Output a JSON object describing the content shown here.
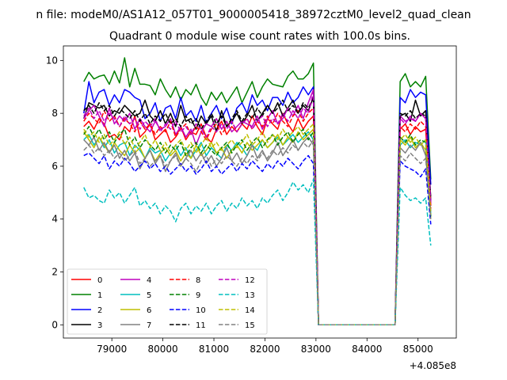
{
  "chart_data": {
    "type": "line",
    "suptitle": "n file: modeM0/AS1A12_057T01_9000005418_38972cztM0_level2_quad_clean",
    "title": "Quadrant 0 module wise count rates with 100.0s bins.",
    "xlabel": "",
    "ylabel": "",
    "x_offset_label": "+4.085e8",
    "xlim": [
      78050,
      85750
    ],
    "ylim": [
      -0.5,
      10.55
    ],
    "x_ticks": [
      79000,
      80000,
      81000,
      82000,
      83000,
      84000,
      85000
    ],
    "x_tick_labels": [
      "79000",
      "80000",
      "81000",
      "82000",
      "83000",
      "84000",
      "85000"
    ],
    "y_ticks": [
      0,
      2,
      4,
      6,
      8,
      10
    ],
    "y_tick_labels": [
      "0",
      "2",
      "4",
      "6",
      "8",
      "10"
    ],
    "legend_location": "lower-left",
    "x_start": 78450,
    "bin_width": 100,
    "gap_start_index": 46,
    "gap_end_index": 61,
    "series": [
      {
        "name": "0",
        "color": "#ff0000",
        "dash": "solid",
        "values": [
          7.5,
          7.7,
          7.4,
          7.8,
          7.6,
          7.1,
          7.2,
          7.0,
          7.5,
          7.3,
          7.9,
          7.1,
          7.3,
          7.6,
          7.0,
          7.2,
          7.4,
          6.9,
          7.1,
          7.5,
          7.0,
          7.3,
          7.2,
          7.6,
          7.1,
          6.9,
          7.4,
          7.7,
          7.2,
          7.5,
          7.3,
          7.6,
          7.4,
          7.9,
          7.5,
          7.2,
          7.8,
          7.6,
          7.4,
          8.0,
          7.6,
          7.3,
          7.8,
          7.4,
          7.7,
          7.9,
          0,
          0,
          0,
          0,
          0,
          0,
          0,
          0,
          0,
          0,
          0,
          0,
          0,
          0,
          0,
          0,
          7.4,
          7.6,
          7.2,
          7.5,
          7.3,
          7.4,
          4.5
        ]
      },
      {
        "name": "1",
        "color": "#008000",
        "dash": "solid",
        "values": [
          9.2,
          9.55,
          9.3,
          9.4,
          9.45,
          9.1,
          9.6,
          9.15,
          10.1,
          9.0,
          9.7,
          9.1,
          9.1,
          9.05,
          8.7,
          9.3,
          8.9,
          8.6,
          9.0,
          8.5,
          8.9,
          8.7,
          9.1,
          8.6,
          8.3,
          8.8,
          8.5,
          8.8,
          8.4,
          8.7,
          9.0,
          8.4,
          8.8,
          9.2,
          8.6,
          9.0,
          9.3,
          9.1,
          9.05,
          9.0,
          9.4,
          9.6,
          9.3,
          9.3,
          9.5,
          9.9,
          0,
          0,
          0,
          0,
          0,
          0,
          0,
          0,
          0,
          0,
          0,
          0,
          0,
          0,
          0,
          0,
          9.2,
          9.5,
          9.0,
          9.2,
          9.0,
          9.4,
          5.5
        ]
      },
      {
        "name": "2",
        "color": "#0000ff",
        "dash": "solid",
        "values": [
          8.0,
          9.2,
          8.4,
          8.8,
          8.9,
          8.3,
          8.7,
          8.4,
          8.9,
          8.8,
          8.6,
          8.5,
          7.8,
          8.0,
          8.4,
          7.7,
          8.2,
          8.3,
          7.8,
          8.6,
          7.9,
          8.1,
          7.7,
          8.3,
          7.6,
          8.0,
          8.3,
          7.8,
          8.2,
          7.6,
          8.2,
          8.4,
          8.0,
          8.7,
          8.3,
          8.5,
          8.1,
          8.6,
          8.6,
          8.3,
          8.8,
          8.4,
          8.6,
          9.0,
          8.7,
          9.0,
          0,
          0,
          0,
          0,
          0,
          0,
          0,
          0,
          0,
          0,
          0,
          0,
          0,
          0,
          0,
          0,
          8.6,
          8.4,
          8.9,
          8.6,
          8.8,
          8.7,
          5.3
        ]
      },
      {
        "name": "3",
        "color": "#000000",
        "dash": "solid",
        "values": [
          7.8,
          8.4,
          8.3,
          8.2,
          8.3,
          7.9,
          8.1,
          8.0,
          8.3,
          8.1,
          7.9,
          8.0,
          8.5,
          7.9,
          7.7,
          8.1,
          7.6,
          8.0,
          7.5,
          8.3,
          7.7,
          7.8,
          7.4,
          7.9,
          7.6,
          7.9,
          7.3,
          8.1,
          7.5,
          7.7,
          8.0,
          7.6,
          7.9,
          8.3,
          7.7,
          8.0,
          8.3,
          8.0,
          8.4,
          7.9,
          8.2,
          8.5,
          8.0,
          8.3,
          8.1,
          8.6,
          0,
          0,
          0,
          0,
          0,
          0,
          0,
          0,
          0,
          0,
          0,
          0,
          0,
          0,
          0,
          0,
          7.9,
          8.0,
          7.7,
          8.5,
          7.9,
          8.1,
          4.7
        ]
      },
      {
        "name": "4",
        "color": "#bf00bf",
        "dash": "solid",
        "values": [
          7.8,
          8.1,
          8.3,
          7.9,
          7.5,
          8.2,
          7.6,
          7.9,
          7.7,
          8.0,
          7.4,
          7.8,
          7.5,
          7.3,
          7.7,
          7.4,
          7.5,
          7.8,
          7.2,
          7.5,
          7.1,
          7.4,
          6.8,
          7.3,
          7.6,
          7.5,
          7.8,
          7.4,
          7.7,
          7.3,
          7.5,
          7.7,
          7.6,
          7.5,
          7.9,
          7.4,
          7.8,
          8.1,
          7.6,
          7.8,
          8.2,
          7.9,
          8.3,
          7.8,
          8.4,
          8.9,
          0,
          0,
          0,
          0,
          0,
          0,
          0,
          0,
          0,
          0,
          0,
          0,
          0,
          0,
          0,
          0,
          7.9,
          7.7,
          7.8,
          7.7,
          8.0,
          7.8,
          4.6
        ]
      },
      {
        "name": "5",
        "color": "#00bfbf",
        "dash": "solid",
        "values": [
          7.0,
          7.2,
          6.8,
          7.1,
          6.7,
          7.0,
          6.5,
          6.8,
          6.9,
          6.4,
          6.8,
          6.6,
          6.3,
          6.7,
          6.5,
          6.6,
          6.2,
          6.5,
          6.8,
          6.4,
          6.7,
          6.3,
          6.6,
          6.9,
          6.4,
          6.7,
          6.5,
          6.3,
          6.8,
          6.6,
          6.9,
          6.7,
          6.4,
          6.8,
          6.6,
          7.0,
          6.7,
          6.9,
          7.1,
          6.8,
          7.0,
          7.2,
          6.9,
          7.1,
          7.3,
          7.0,
          0,
          0,
          0,
          0,
          0,
          0,
          0,
          0,
          0,
          0,
          0,
          0,
          0,
          0,
          0,
          0,
          6.8,
          7.0,
          6.7,
          6.9,
          6.8,
          7.0,
          4.2
        ]
      },
      {
        "name": "6",
        "color": "#bfbf00",
        "dash": "solid",
        "values": [
          7.3,
          7.0,
          6.7,
          7.1,
          6.8,
          6.5,
          6.9,
          6.6,
          6.4,
          6.8,
          6.5,
          6.7,
          6.3,
          6.6,
          6.2,
          6.5,
          6.7,
          6.4,
          6.6,
          6.2,
          6.5,
          6.3,
          6.8,
          6.4,
          6.6,
          6.9,
          6.5,
          6.7,
          6.3,
          6.6,
          6.8,
          6.5,
          6.9,
          6.6,
          6.8,
          7.0,
          6.7,
          6.9,
          7.2,
          6.8,
          7.1,
          6.9,
          7.3,
          7.0,
          7.2,
          7.4,
          0,
          0,
          0,
          0,
          0,
          0,
          0,
          0,
          0,
          0,
          0,
          0,
          0,
          0,
          0,
          0,
          7.0,
          6.8,
          7.1,
          6.7,
          6.9,
          6.6,
          4.0
        ]
      },
      {
        "name": "7",
        "color": "#808080",
        "dash": "solid",
        "values": [
          7.0,
          6.8,
          7.1,
          6.6,
          6.9,
          6.5,
          6.8,
          6.3,
          6.6,
          6.2,
          6.5,
          5.9,
          6.3,
          6.6,
          6.1,
          6.4,
          5.8,
          6.2,
          6.5,
          6.0,
          6.3,
          6.6,
          6.2,
          6.5,
          6.1,
          6.4,
          6.0,
          6.3,
          6.7,
          6.2,
          6.5,
          6.1,
          6.4,
          6.8,
          6.3,
          6.6,
          6.2,
          6.5,
          6.9,
          6.4,
          6.7,
          7.0,
          6.6,
          6.9,
          7.1,
          6.8,
          0,
          0,
          0,
          0,
          0,
          0,
          0,
          0,
          0,
          0,
          0,
          0,
          0,
          0,
          0,
          0,
          6.7,
          6.5,
          6.8,
          6.6,
          6.9,
          6.4,
          4.3
        ]
      },
      {
        "name": "8",
        "color": "#ff0000",
        "dash": "dashed",
        "values": [
          7.7,
          8.0,
          7.8,
          7.6,
          8.1,
          7.7,
          7.9,
          7.5,
          7.8,
          7.6,
          7.3,
          7.7,
          7.4,
          7.6,
          7.2,
          7.5,
          7.3,
          7.7,
          7.1,
          7.4,
          7.6,
          7.2,
          7.5,
          7.3,
          7.0,
          7.4,
          7.6,
          7.2,
          7.5,
          7.7,
          7.3,
          7.6,
          7.8,
          7.4,
          7.7,
          7.5,
          7.9,
          7.6,
          8.0,
          7.7,
          7.5,
          7.9,
          8.1,
          7.7,
          8.0,
          8.2,
          0,
          0,
          0,
          0,
          0,
          0,
          0,
          0,
          0,
          0,
          0,
          0,
          0,
          0,
          0,
          0,
          7.5,
          7.3,
          7.6,
          7.4,
          7.7,
          7.5,
          4.4
        ]
      },
      {
        "name": "9",
        "color": "#008000",
        "dash": "dashed",
        "values": [
          7.2,
          7.5,
          7.1,
          7.4,
          7.0,
          7.3,
          6.9,
          7.2,
          7.4,
          6.8,
          7.1,
          6.7,
          7.0,
          6.8,
          6.6,
          6.9,
          6.5,
          6.8,
          6.6,
          6.9,
          6.4,
          6.7,
          6.9,
          6.5,
          6.8,
          6.6,
          6.4,
          6.7,
          6.9,
          6.5,
          6.8,
          7.0,
          6.6,
          6.9,
          7.1,
          6.7,
          7.0,
          7.2,
          6.8,
          7.1,
          7.3,
          6.9,
          7.2,
          7.4,
          7.0,
          7.3,
          0,
          0,
          0,
          0,
          0,
          0,
          0,
          0,
          0,
          0,
          0,
          0,
          0,
          0,
          0,
          0,
          7.1,
          6.9,
          7.2,
          6.8,
          7.0,
          6.9,
          4.1
        ]
      },
      {
        "name": "10",
        "color": "#0000ff",
        "dash": "dashed",
        "values": [
          6.4,
          6.5,
          6.3,
          6.1,
          6.4,
          5.9,
          6.2,
          6.0,
          6.3,
          6.1,
          5.8,
          6.0,
          6.2,
          5.9,
          6.1,
          5.8,
          6.0,
          5.7,
          5.9,
          6.1,
          5.8,
          6.0,
          5.7,
          5.9,
          6.2,
          5.8,
          6.0,
          5.7,
          5.9,
          6.1,
          5.8,
          6.1,
          5.9,
          6.2,
          6.0,
          5.8,
          6.1,
          5.9,
          6.2,
          6.0,
          6.3,
          6.1,
          5.9,
          6.2,
          6.4,
          6.1,
          0,
          0,
          0,
          0,
          0,
          0,
          0,
          0,
          0,
          0,
          0,
          0,
          0,
          0,
          0,
          0,
          6.2,
          6.0,
          5.9,
          5.8,
          5.6,
          5.9,
          3.8
        ]
      },
      {
        "name": "11",
        "color": "#000000",
        "dash": "dashed",
        "values": [
          8.1,
          8.3,
          8.0,
          8.4,
          8.1,
          8.3,
          7.9,
          8.2,
          8.0,
          7.8,
          8.1,
          7.7,
          8.0,
          7.6,
          7.9,
          7.7,
          8.0,
          7.6,
          7.8,
          7.5,
          7.9,
          7.6,
          7.8,
          7.4,
          7.7,
          8.0,
          7.6,
          7.9,
          7.5,
          7.8,
          8.1,
          7.7,
          8.0,
          7.8,
          8.2,
          7.9,
          8.3,
          8.0,
          8.2,
          8.5,
          8.1,
          8.3,
          8.0,
          8.4,
          8.2,
          8.6,
          0,
          0,
          0,
          0,
          0,
          0,
          0,
          0,
          0,
          0,
          0,
          0,
          0,
          0,
          0,
          0,
          8.0,
          7.9,
          8.1,
          7.8,
          8.0,
          7.9,
          4.8
        ]
      },
      {
        "name": "12",
        "color": "#bf00bf",
        "dash": "dashed",
        "values": [
          7.9,
          8.2,
          7.8,
          8.1,
          7.7,
          8.0,
          7.8,
          7.5,
          7.9,
          7.6,
          7.8,
          7.4,
          7.7,
          7.5,
          7.8,
          7.3,
          7.6,
          7.4,
          7.7,
          7.3,
          7.5,
          7.2,
          7.6,
          7.4,
          7.1,
          7.5,
          7.3,
          7.6,
          7.4,
          7.7,
          7.3,
          7.6,
          7.8,
          7.4,
          7.7,
          7.9,
          7.5,
          7.8,
          7.6,
          8.0,
          7.7,
          8.1,
          7.8,
          8.2,
          8.0,
          8.8,
          0,
          0,
          0,
          0,
          0,
          0,
          0,
          0,
          0,
          0,
          0,
          0,
          0,
          0,
          0,
          0,
          7.8,
          7.6,
          7.9,
          7.7,
          8.0,
          7.8,
          4.6
        ]
      },
      {
        "name": "13",
        "color": "#00bfbf",
        "dash": "dashed",
        "values": [
          5.2,
          4.8,
          4.9,
          4.7,
          4.6,
          5.1,
          4.8,
          5.0,
          4.6,
          4.9,
          5.2,
          4.5,
          4.7,
          4.4,
          4.6,
          4.2,
          4.5,
          4.3,
          3.9,
          4.4,
          4.6,
          4.2,
          4.5,
          4.3,
          4.6,
          4.2,
          4.5,
          4.7,
          4.3,
          4.6,
          4.4,
          4.8,
          4.5,
          4.7,
          4.4,
          4.8,
          4.6,
          4.9,
          5.1,
          4.7,
          5.0,
          5.4,
          5.1,
          5.3,
          5.0,
          5.5,
          0,
          0,
          0,
          0,
          0,
          0,
          0,
          0,
          0,
          0,
          0,
          0,
          0,
          0,
          0,
          0,
          5.2,
          4.9,
          4.7,
          4.8,
          4.6,
          4.8,
          3.0
        ]
      },
      {
        "name": "14",
        "color": "#bfbf00",
        "dash": "dashed",
        "values": [
          7.4,
          7.1,
          7.3,
          6.9,
          7.2,
          6.8,
          7.0,
          7.3,
          6.8,
          7.1,
          6.7,
          6.9,
          7.2,
          6.7,
          7.0,
          6.6,
          6.9,
          6.5,
          6.8,
          7.0,
          6.6,
          6.9,
          6.5,
          6.8,
          7.1,
          6.7,
          6.9,
          6.6,
          6.8,
          7.0,
          6.7,
          6.9,
          7.2,
          6.8,
          7.0,
          7.3,
          6.9,
          7.2,
          7.0,
          7.4,
          7.1,
          7.3,
          7.5,
          7.2,
          7.4,
          7.6,
          0,
          0,
          0,
          0,
          0,
          0,
          0,
          0,
          0,
          0,
          0,
          0,
          0,
          0,
          0,
          0,
          7.0,
          7.2,
          6.9,
          7.1,
          6.8,
          7.0,
          4.2
        ]
      },
      {
        "name": "15",
        "color": "#808080",
        "dash": "dashed",
        "values": [
          6.6,
          6.8,
          6.5,
          6.7,
          6.4,
          6.6,
          6.3,
          6.5,
          6.2,
          6.4,
          6.6,
          6.1,
          6.3,
          6.0,
          6.2,
          6.4,
          6.0,
          6.2,
          6.4,
          6.0,
          6.3,
          6.1,
          5.8,
          6.2,
          6.4,
          6.0,
          6.3,
          6.1,
          6.4,
          6.2,
          6.0,
          6.3,
          6.1,
          6.4,
          6.2,
          6.5,
          6.3,
          6.6,
          6.4,
          6.7,
          6.5,
          6.8,
          6.6,
          6.9,
          6.7,
          7.0,
          0,
          0,
          0,
          0,
          0,
          0,
          0,
          0,
          0,
          0,
          0,
          0,
          0,
          0,
          0,
          0,
          6.4,
          6.2,
          6.5,
          6.3,
          6.1,
          6.3,
          4.0
        ]
      }
    ]
  }
}
